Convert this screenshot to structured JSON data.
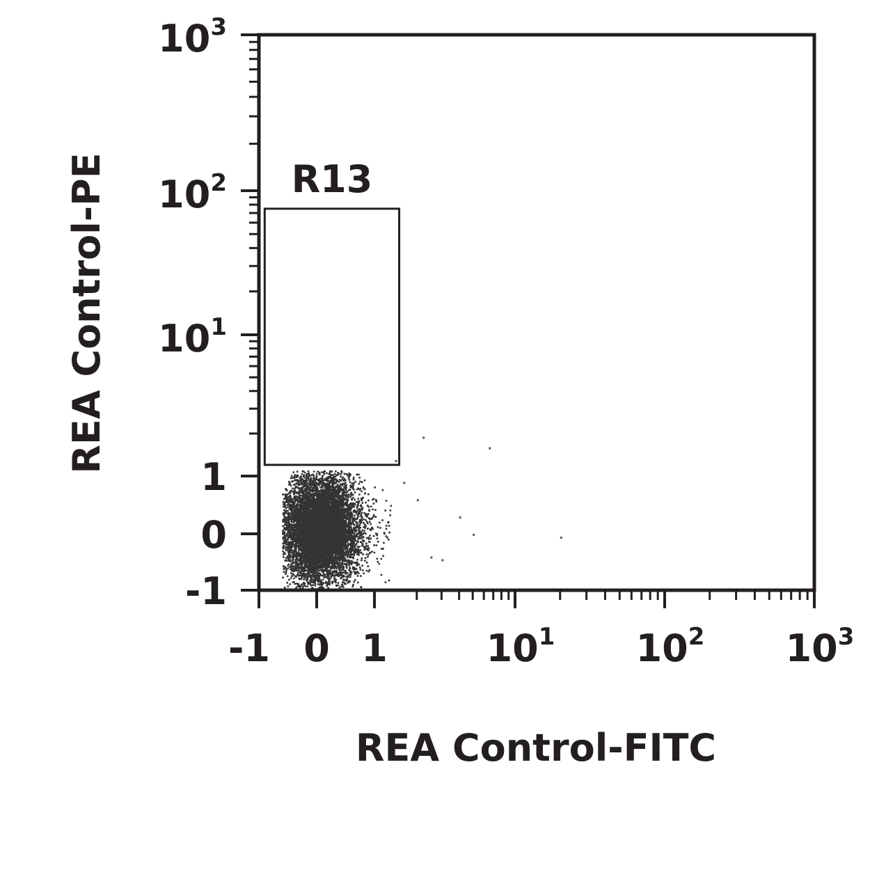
{
  "chart_data": {
    "type": "scatter",
    "subtype": "flow-cytometry-dot-plot",
    "xlabel": "REA Control-FITC",
    "ylabel": "REA Control-PE",
    "x_scale": "biexponential",
    "y_scale": "biexponential",
    "xlim": [
      -1,
      1000
    ],
    "ylim": [
      -1,
      1000
    ],
    "x_ticks": [
      {
        "value": -1,
        "base": "-1",
        "exp": ""
      },
      {
        "value": 0,
        "base": "0",
        "exp": ""
      },
      {
        "value": 1,
        "base": "1",
        "exp": ""
      },
      {
        "value": 10,
        "base": "10",
        "exp": "1"
      },
      {
        "value": 100,
        "base": "10",
        "exp": "2"
      },
      {
        "value": 1000,
        "base": "10",
        "exp": "3"
      }
    ],
    "y_ticks": [
      {
        "value": -1,
        "base": "-1",
        "exp": ""
      },
      {
        "value": 0,
        "base": "0",
        "exp": ""
      },
      {
        "value": 1,
        "base": "1",
        "exp": ""
      },
      {
        "value": 10,
        "base": "10",
        "exp": "1"
      },
      {
        "value": 100,
        "base": "10",
        "exp": "2"
      },
      {
        "value": 1000,
        "base": "10",
        "exp": "3"
      }
    ],
    "gates": [
      {
        "name": "R13",
        "x_range": [
          -0.9,
          1.5
        ],
        "y_range": [
          1.2,
          75
        ]
      }
    ],
    "population": {
      "center": [
        0.05,
        0.1
      ],
      "spread": [
        0.3,
        0.45
      ],
      "x_range": [
        -0.6,
        1.3
      ],
      "y_range": [
        -1,
        1.1
      ],
      "color": "#1e1c1d"
    },
    "outlier_points": [
      [
        2.0,
        0.6
      ],
      [
        2.5,
        -0.4
      ],
      [
        3.0,
        -0.45
      ],
      [
        4.0,
        0.3
      ],
      [
        5.0,
        0.0
      ],
      [
        6.5,
        1.6
      ],
      [
        20,
        -0.05
      ],
      [
        2.2,
        1.9
      ],
      [
        1.6,
        0.9
      ],
      [
        1.4,
        1.3
      ]
    ],
    "grid": false
  }
}
